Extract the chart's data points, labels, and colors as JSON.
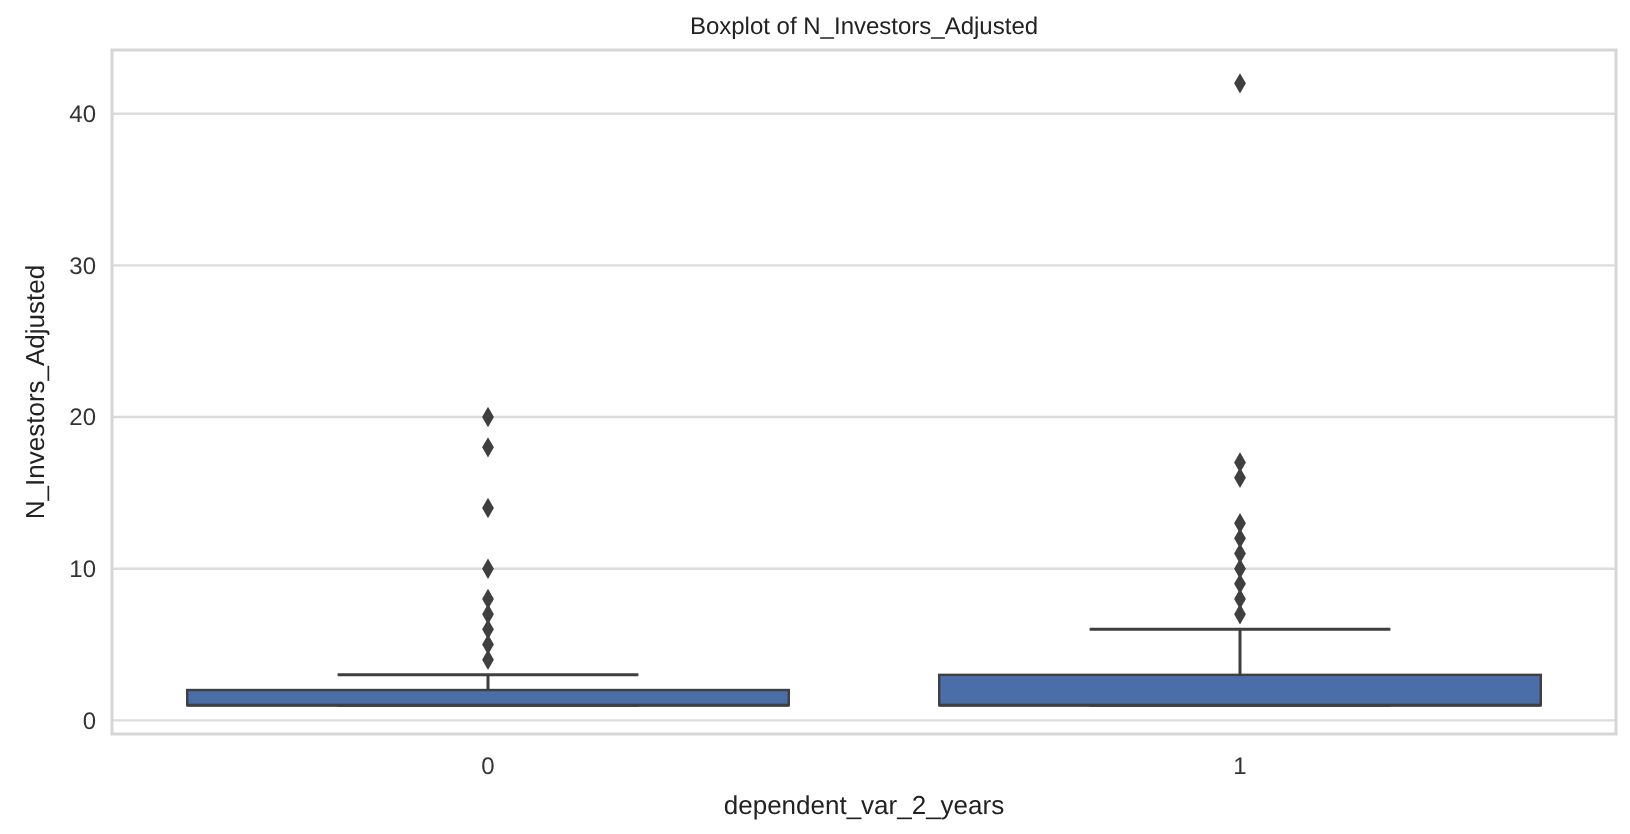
{
  "chart_data": {
    "type": "box",
    "title": "Boxplot of N_Investors_Adjusted",
    "xlabel": "dependent_var_2_years",
    "ylabel": "N_Investors_Adjusted",
    "categories": [
      "0",
      "1"
    ],
    "boxes": [
      {
        "low": 1,
        "q1": 1,
        "median": 1,
        "q3": 2,
        "high": 3,
        "outliers": [
          4,
          5,
          6,
          7,
          8,
          10,
          14,
          18,
          20
        ]
      },
      {
        "low": 1,
        "q1": 1,
        "median": 1,
        "q3": 3,
        "high": 6,
        "outliers": [
          7,
          8,
          9,
          10,
          11,
          12,
          13,
          16,
          17,
          42
        ]
      }
    ],
    "color": "#4c6ea8",
    "ylim": [
      -0.9,
      44.2
    ],
    "yticks": [
      0,
      10,
      20,
      30,
      40
    ],
    "grid": "y",
    "marker": "diamond"
  }
}
